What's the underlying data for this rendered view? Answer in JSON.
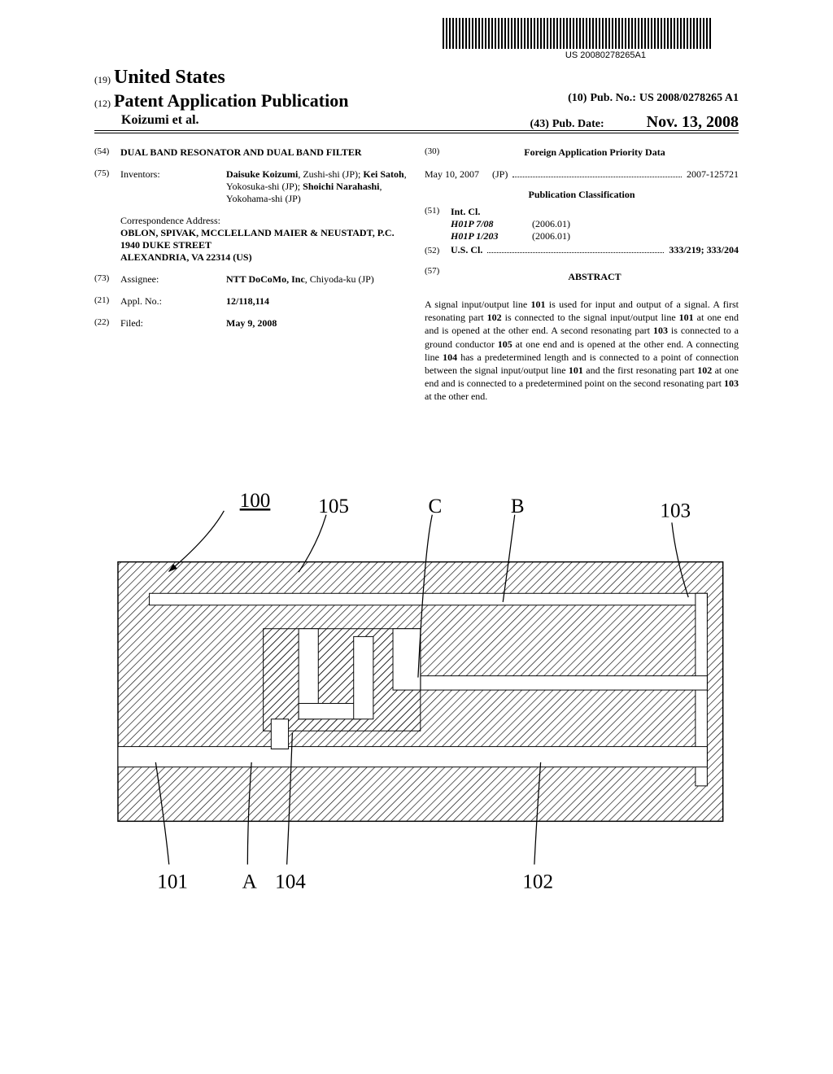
{
  "barcode_text": "US 20080278265A1",
  "header": {
    "country_tag": "(19)",
    "country": "United States",
    "pub_tag": "(12)",
    "pub_label": "Patent Application Publication",
    "pubno_tag": "(10)",
    "pubno_label": "Pub. No.:",
    "pubno_value": "US 2008/0278265 A1",
    "authors": "Koizumi et al.",
    "pubdate_tag": "(43)",
    "pubdate_label": "Pub. Date:",
    "pubdate_value": "Nov. 13, 2008"
  },
  "left_col": {
    "title_tag": "(54)",
    "title": "DUAL BAND RESONATOR AND DUAL BAND FILTER",
    "inventors_tag": "(75)",
    "inventors_label": "Inventors:",
    "inventors": [
      {
        "name": "Daisuke Koizumi",
        "loc": "Zushi-shi (JP)"
      },
      {
        "name": "Kei Satoh",
        "loc": "Yokosuka-shi (JP)"
      },
      {
        "name": "Shoichi Narahashi",
        "loc": "Yokohama-shi (JP)"
      }
    ],
    "corr_label": "Correspondence Address:",
    "corr_lines": [
      "OBLON, SPIVAK, MCCLELLAND MAIER & NEUSTADT, P.C.",
      "1940 DUKE STREET",
      "ALEXANDRIA, VA 22314 (US)"
    ],
    "assignee_tag": "(73)",
    "assignee_label": "Assignee:",
    "assignee": "NTT DoCoMo, Inc",
    "assignee_loc": "Chiyoda-ku (JP)",
    "applno_tag": "(21)",
    "applno_label": "Appl. No.:",
    "applno": "12/118,114",
    "filed_tag": "(22)",
    "filed_label": "Filed:",
    "filed": "May 9, 2008"
  },
  "right_col": {
    "foreign_tag": "(30)",
    "foreign_label": "Foreign Application Priority Data",
    "foreign_date": "May 10, 2007",
    "foreign_cc": "(JP)",
    "foreign_num": "2007-125721",
    "pubclass_label": "Publication Classification",
    "intcl_tag": "(51)",
    "intcl_label": "Int. Cl.",
    "intcl": [
      {
        "code": "H01P 7/08",
        "year": "(2006.01)"
      },
      {
        "code": "H01P 1/203",
        "year": "(2006.01)"
      }
    ],
    "uscl_tag": "(52)",
    "uscl_label": "U.S. Cl.",
    "uscl_val": "333/219; 333/204",
    "abstract_tag": "(57)",
    "abstract_label": "ABSTRACT",
    "abstract": "A signal input/output line 101 is used for input and output of a signal. A first resonating part 102 is connected to the signal input/output line 101 at one end and is opened at the other end. A second resonating part 103 is connected to a ground conductor 105 at one end and is opened at the other end. A connecting line 104 has a predetermined length and is connected to a point of connection between the signal input/output line 101 and the first resonating part 102 at one end and is connected to a predetermined point on the second resonating part 103 at the other end."
  },
  "figure": {
    "labels": {
      "l100": "100",
      "l105": "105",
      "lC": "C",
      "lB": "B",
      "l103": "103",
      "l101": "101",
      "lA": "A",
      "l104": "104",
      "l102": "102"
    },
    "colors": {
      "stroke": "#000000",
      "bg": "#ffffff",
      "hatch": "#000000"
    }
  }
}
